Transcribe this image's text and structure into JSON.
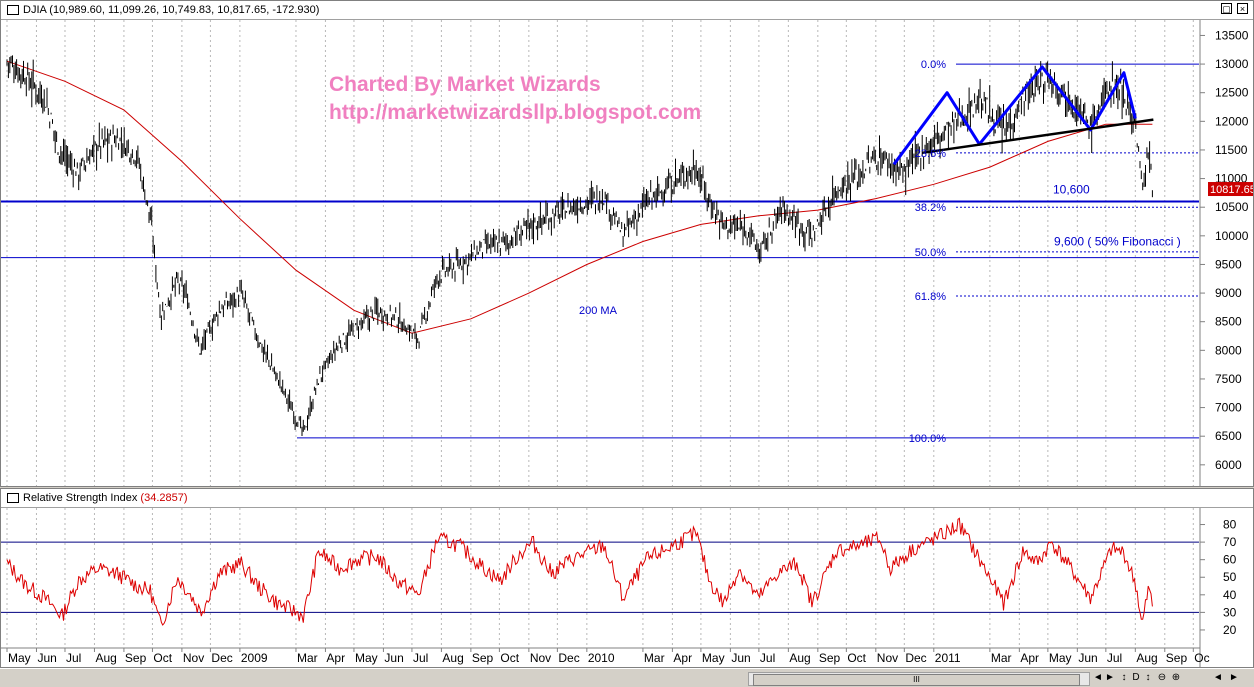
{
  "price_panel": {
    "ticker_text": "DJIA (10,989.60, 11,099.26, 10,749.83, 10,817.65, -172.930)",
    "last_price_badge": "10817.65",
    "watermark_line1": "Charted By Market Wizards",
    "watermark_line2": "http://marketwizardsllp.blogspot.com",
    "ma_label": "200 MA",
    "fib_labels": [
      "0.0%",
      "23.6%",
      "38.2%",
      "50.0%",
      "61.8%",
      "100.0%"
    ],
    "level_10600_label": "10,600",
    "level_9600_label": "9,600 ( 50% Fibonacci )"
  },
  "rsi_panel": {
    "title": "Relative Strength Index",
    "value": "(34.2857)"
  },
  "window_buttons": {
    "restore": "▢",
    "close": "×"
  },
  "statusbar": {
    "thumb_grip": "III",
    "glyphs": [
      "◄",
      "►",
      "↕",
      "D",
      "↕",
      "⊖",
      "⊕",
      "◄",
      "►"
    ]
  },
  "colors": {
    "price_bars": "#000000",
    "ma_line": "#cc0000",
    "fib_line": "#0000cc",
    "trendline": "#000000",
    "pattern_line": "#0000ff",
    "watermark": "#f080c0",
    "rsi_line": "#dd0000",
    "last_badge": "#cc0000"
  },
  "chart_data": [
    {
      "type": "line",
      "title": "DJIA",
      "xlabel": "",
      "ylabel": "",
      "ylim": [
        5700,
        13700
      ],
      "yticks": [
        6000,
        6500,
        7000,
        7500,
        8000,
        8500,
        9000,
        9500,
        10000,
        10500,
        11000,
        11500,
        12000,
        12500,
        13000,
        13500
      ],
      "x_tick_labels": [
        "May",
        "Jun",
        "Jul",
        "Aug",
        "Sep",
        "Oct",
        "Nov",
        "Dec",
        "2009",
        "Mar",
        "Apr",
        "May",
        "Jun",
        "Jul",
        "Aug",
        "Sep",
        "Oct",
        "Nov",
        "Dec",
        "2010",
        "Mar",
        "Apr",
        "May",
        "Jun",
        "Jul",
        "Aug",
        "Sep",
        "Oct",
        "Nov",
        "Dec",
        "2011",
        "Mar",
        "Apr",
        "May",
        "Jun",
        "Jul",
        "Aug",
        "Sep",
        "Oc"
      ],
      "x_dates": [
        "2008-05-01",
        "2008-06-01",
        "2008-07-01",
        "2008-08-01",
        "2008-09-01",
        "2008-10-01",
        "2008-11-01",
        "2008-12-01",
        "2009-01-01",
        "2009-03-01",
        "2009-04-01",
        "2009-05-01",
        "2009-06-01",
        "2009-07-01",
        "2009-08-01",
        "2009-09-01",
        "2009-10-01",
        "2009-11-01",
        "2009-12-01",
        "2010-01-01",
        "2010-03-01",
        "2010-04-01",
        "2010-05-01",
        "2010-06-01",
        "2010-07-01",
        "2010-08-01",
        "2010-09-01",
        "2010-10-01",
        "2010-11-01",
        "2010-12-01",
        "2011-01-01",
        "2011-03-01",
        "2011-04-01",
        "2011-05-01",
        "2011-06-01",
        "2011-07-01",
        "2011-08-01",
        "2011-09-01",
        "2011-10-01"
      ],
      "series": [
        {
          "name": "DJIA",
          "style": "close",
          "x": [
            "2008-05-01",
            "2008-05-20",
            "2008-06-10",
            "2008-06-25",
            "2008-07-15",
            "2008-08-05",
            "2008-08-25",
            "2008-09-15",
            "2008-09-29",
            "2008-10-10",
            "2008-10-27",
            "2008-11-05",
            "2008-11-20",
            "2008-12-10",
            "2009-01-02",
            "2009-01-20",
            "2009-02-10",
            "2009-03-09",
            "2009-03-25",
            "2009-04-15",
            "2009-05-05",
            "2009-05-25",
            "2009-06-15",
            "2009-07-08",
            "2009-07-28",
            "2009-08-20",
            "2009-09-15",
            "2009-10-10",
            "2009-11-05",
            "2009-12-01",
            "2010-01-19",
            "2010-02-08",
            "2010-03-05",
            "2010-04-26",
            "2010-05-10",
            "2010-05-25",
            "2010-06-20",
            "2010-07-02",
            "2010-07-25",
            "2010-08-26",
            "2010-09-20",
            "2010-10-15",
            "2010-11-05",
            "2010-11-30",
            "2010-12-20",
            "2011-01-20",
            "2011-02-18",
            "2011-03-16",
            "2011-04-05",
            "2011-05-02",
            "2011-05-25",
            "2011-06-15",
            "2011-07-07",
            "2011-07-20",
            "2011-08-02",
            "2011-08-08",
            "2011-08-15",
            "2011-08-19"
          ],
          "values": [
            13050,
            12800,
            12400,
            11500,
            11100,
            11600,
            11700,
            11400,
            10300,
            8600,
            9200,
            9000,
            8000,
            8700,
            9000,
            8200,
            7500,
            6550,
            7500,
            8100,
            8400,
            8700,
            8550,
            8200,
            9300,
            9500,
            9800,
            9900,
            10200,
            10400,
            10700,
            10000,
            10600,
            11200,
            10600,
            10200,
            10100,
            9700,
            10500,
            10000,
            10800,
            11100,
            11400,
            11100,
            11500,
            11900,
            12400,
            11800,
            12400,
            12800,
            12400,
            11900,
            12700,
            12500,
            11900,
            10800,
            11500,
            10818
          ]
        },
        {
          "name": "200 MA",
          "x": [
            "2008-05-01",
            "2008-07-01",
            "2008-09-01",
            "2008-11-01",
            "2009-01-01",
            "2009-03-01",
            "2009-05-01",
            "2009-07-01",
            "2009-09-01",
            "2009-11-01",
            "2010-01-01",
            "2010-03-01",
            "2010-05-01",
            "2010-07-01",
            "2010-09-01",
            "2010-11-01",
            "2011-01-01",
            "2011-03-01",
            "2011-05-01",
            "2011-07-01",
            "2011-08-19"
          ],
          "values": [
            13050,
            12700,
            12200,
            11300,
            10300,
            9400,
            8700,
            8300,
            8550,
            9000,
            9500,
            9900,
            10200,
            10350,
            10450,
            10650,
            10900,
            11200,
            11650,
            11950,
            11950
          ]
        }
      ],
      "fibonacci_levels": [
        {
          "label": "0.0%",
          "value": 13000
        },
        {
          "label": "23.6%",
          "value": 11450
        },
        {
          "label": "38.2%",
          "value": 10500
        },
        {
          "label": "50.0%",
          "value": 9720
        },
        {
          "label": "61.8%",
          "value": 8950
        },
        {
          "label": "100.0%",
          "value": 6470
        }
      ],
      "horizontal_levels": [
        {
          "label": "10,600",
          "value": 10600
        },
        {
          "label": "9,600 ( 50% Fibonacci )",
          "value": 9620
        }
      ],
      "trendline_neckline": [
        {
          "x": "2010-12-20",
          "y": 11450
        },
        {
          "x": "2011-08-20",
          "y": 12030
        }
      ],
      "pattern_zigzag": [
        {
          "x": "2010-11-20",
          "y": 11250
        },
        {
          "x": "2011-01-15",
          "y": 12500
        },
        {
          "x": "2011-02-18",
          "y": 11600
        },
        {
          "x": "2011-04-25",
          "y": 12950
        },
        {
          "x": "2011-06-15",
          "y": 11850
        },
        {
          "x": "2011-07-20",
          "y": 12850
        },
        {
          "x": "2011-08-01",
          "y": 12050
        }
      ],
      "grid": true,
      "grid_style": "vertical dashed at month boundaries",
      "legend": "none",
      "last_price": 10817.65
    },
    {
      "type": "line",
      "title": "Relative Strength Index",
      "xlabel": "",
      "ylabel": "",
      "ylim": [
        12,
        86
      ],
      "yticks": [
        20,
        30,
        40,
        50,
        60,
        70,
        80
      ],
      "reference_lines": [
        70,
        30
      ],
      "series": [
        {
          "name": "Relative Strength Index",
          "x": [
            "2008-05-01",
            "2008-05-20",
            "2008-06-10",
            "2008-06-28",
            "2008-07-15",
            "2008-08-05",
            "2008-08-25",
            "2008-09-15",
            "2008-09-29",
            "2008-10-10",
            "2008-10-27",
            "2008-11-10",
            "2008-11-21",
            "2008-12-10",
            "2009-01-02",
            "2009-01-20",
            "2009-02-10",
            "2009-03-09",
            "2009-03-25",
            "2009-04-15",
            "2009-05-05",
            "2009-05-25",
            "2009-06-15",
            "2009-07-08",
            "2009-07-28",
            "2009-08-20",
            "2009-09-15",
            "2009-10-02",
            "2009-10-20",
            "2009-11-05",
            "2009-11-25",
            "2009-12-15",
            "2010-01-19",
            "2010-02-08",
            "2010-03-05",
            "2010-04-15",
            "2010-04-26",
            "2010-05-10",
            "2010-05-25",
            "2010-06-10",
            "2010-06-30",
            "2010-07-20",
            "2010-08-10",
            "2010-08-26",
            "2010-09-20",
            "2010-10-15",
            "2010-11-05",
            "2010-11-16",
            "2010-12-10",
            "2011-01-10",
            "2011-01-28",
            "2011-02-18",
            "2011-03-16",
            "2011-04-05",
            "2011-04-20",
            "2011-05-05",
            "2011-05-25",
            "2011-06-15",
            "2011-07-07",
            "2011-07-20",
            "2011-08-02",
            "2011-08-08",
            "2011-08-15",
            "2011-08-19"
          ],
          "values": [
            58,
            46,
            38,
            28,
            48,
            55,
            52,
            45,
            42,
            22,
            50,
            40,
            30,
            52,
            58,
            45,
            35,
            28,
            65,
            55,
            60,
            62,
            48,
            40,
            72,
            68,
            55,
            48,
            62,
            70,
            52,
            60,
            68,
            38,
            60,
            72,
            75,
            48,
            35,
            55,
            38,
            52,
            58,
            35,
            65,
            68,
            72,
            55,
            66,
            74,
            80,
            60,
            35,
            65,
            58,
            70,
            55,
            38,
            66,
            64,
            45,
            22,
            44,
            34
          ]
        }
      ],
      "grid": true,
      "legend": "none"
    }
  ]
}
